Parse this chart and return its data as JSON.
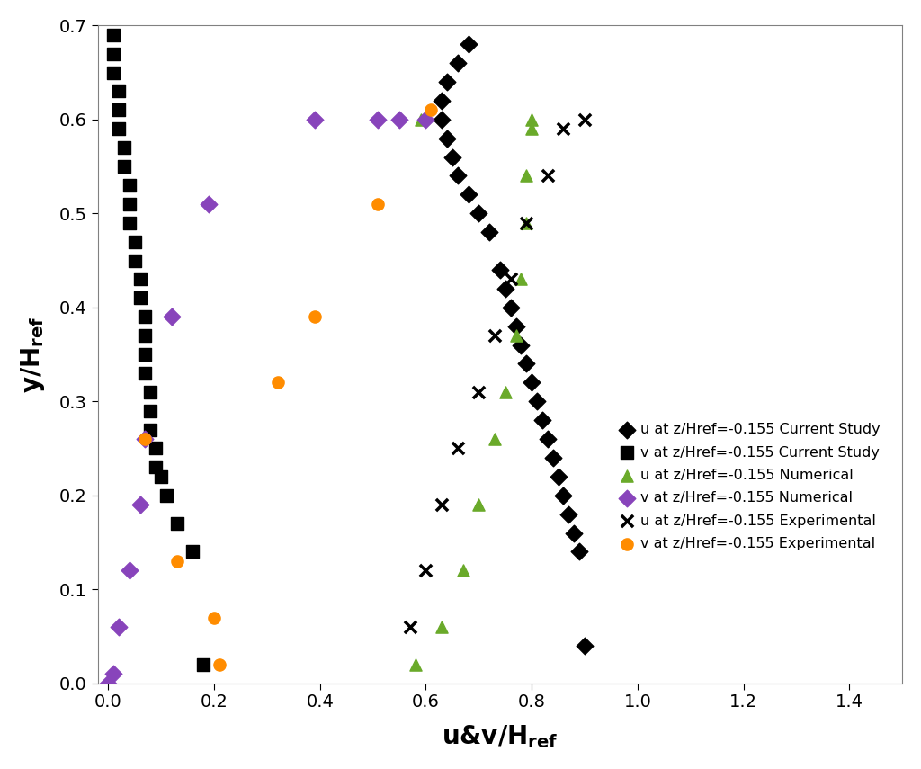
{
  "xlim": [
    -0.02,
    1.5
  ],
  "ylim": [
    0,
    0.7
  ],
  "xticks": [
    0,
    0.2,
    0.4,
    0.6,
    0.8,
    1.0,
    1.2,
    1.4
  ],
  "yticks": [
    0,
    0.1,
    0.2,
    0.3,
    0.4,
    0.5,
    0.6,
    0.7
  ],
  "u_cs_x": [
    0.68,
    0.66,
    0.64,
    0.63,
    0.63,
    0.64,
    0.65,
    0.66,
    0.68,
    0.7,
    0.72,
    0.74,
    0.75,
    0.76,
    0.77,
    0.78,
    0.79,
    0.8,
    0.81,
    0.82,
    0.83,
    0.84,
    0.85,
    0.86,
    0.87,
    0.88,
    0.89,
    0.9
  ],
  "u_cs_y": [
    0.68,
    0.66,
    0.64,
    0.62,
    0.6,
    0.58,
    0.56,
    0.54,
    0.52,
    0.5,
    0.48,
    0.44,
    0.42,
    0.4,
    0.38,
    0.36,
    0.34,
    0.32,
    0.3,
    0.28,
    0.26,
    0.24,
    0.22,
    0.2,
    0.18,
    0.16,
    0.14,
    0.04
  ],
  "v_cs_x": [
    0.01,
    0.01,
    0.01,
    0.02,
    0.02,
    0.02,
    0.03,
    0.03,
    0.04,
    0.04,
    0.04,
    0.05,
    0.05,
    0.06,
    0.06,
    0.07,
    0.07,
    0.07,
    0.07,
    0.08,
    0.08,
    0.08,
    0.09,
    0.09,
    0.1,
    0.11,
    0.13,
    0.16,
    0.18
  ],
  "v_cs_y": [
    0.69,
    0.67,
    0.65,
    0.63,
    0.61,
    0.59,
    0.57,
    0.55,
    0.53,
    0.51,
    0.49,
    0.47,
    0.45,
    0.43,
    0.41,
    0.39,
    0.37,
    0.35,
    0.33,
    0.31,
    0.29,
    0.27,
    0.25,
    0.23,
    0.22,
    0.2,
    0.17,
    0.14,
    0.02
  ],
  "u_num_x": [
    0.005,
    0.58,
    0.63,
    0.67,
    0.7,
    0.73,
    0.75,
    0.77,
    0.78,
    0.79,
    0.79,
    0.8,
    0.8,
    0.59
  ],
  "u_num_y": [
    0.0,
    0.02,
    0.06,
    0.12,
    0.19,
    0.26,
    0.31,
    0.37,
    0.43,
    0.49,
    0.54,
    0.59,
    0.6,
    0.6
  ],
  "v_num_x": [
    0.0,
    0.01,
    0.02,
    0.04,
    0.06,
    0.07,
    0.12,
    0.19,
    0.39,
    0.51,
    0.55,
    0.6
  ],
  "v_num_y": [
    0.0,
    0.01,
    0.06,
    0.12,
    0.19,
    0.26,
    0.39,
    0.51,
    0.6,
    0.6,
    0.6,
    0.6
  ],
  "u_exp_x": [
    0.57,
    0.6,
    0.63,
    0.66,
    0.7,
    0.73,
    0.76,
    0.79,
    0.83,
    0.86,
    0.9
  ],
  "u_exp_y": [
    0.06,
    0.12,
    0.19,
    0.25,
    0.31,
    0.37,
    0.43,
    0.49,
    0.54,
    0.59,
    0.6
  ],
  "v_exp_x": [
    0.21,
    0.2,
    0.13,
    0.07,
    0.32,
    0.39,
    0.51,
    0.61
  ],
  "v_exp_y": [
    0.02,
    0.07,
    0.13,
    0.26,
    0.32,
    0.39,
    0.51,
    0.61
  ],
  "color_u_cs": "#000000",
  "color_v_cs": "#000000",
  "color_u_num": "#6aaa2a",
  "color_v_num": "#8844bb",
  "color_u_exp": "#000000",
  "color_v_exp": "#ff8c00",
  "background_color": "#ffffff"
}
